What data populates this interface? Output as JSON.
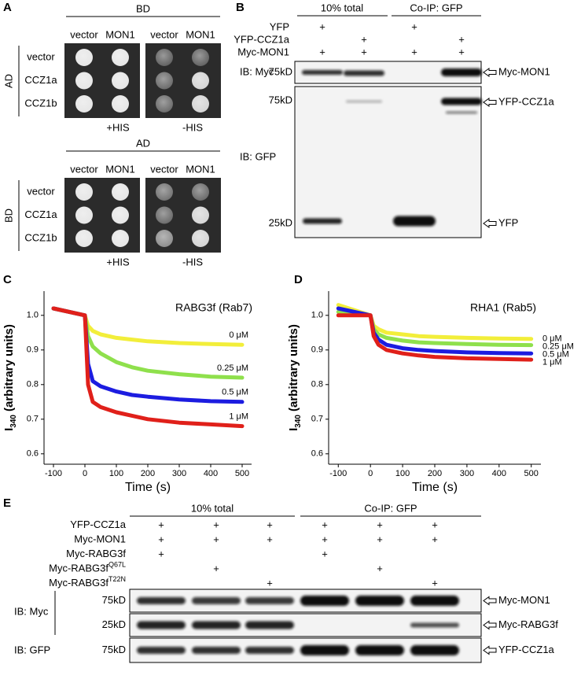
{
  "panel_a": {
    "letter": "A",
    "top": {
      "header": "BD",
      "columns": [
        "vector",
        "MON1",
        "vector",
        "MON1"
      ],
      "side": "AD",
      "rows": [
        "vector",
        "CCZ1a",
        "CCZ1b"
      ],
      "media": [
        "+HIS",
        "-HIS"
      ]
    },
    "bottom": {
      "header": "AD",
      "columns": [
        "vector",
        "MON1",
        "vector",
        "MON1"
      ],
      "side": "BD",
      "rows": [
        "vector",
        "CCZ1a",
        "CCZ1b"
      ],
      "media": [
        "+HIS",
        "-HIS"
      ]
    }
  },
  "panel_b": {
    "letter": "B",
    "groups": [
      "10% total",
      "Co-IP: GFP"
    ],
    "mark": "+",
    "rows": [
      {
        "label": "YFP",
        "present": [
          true,
          false,
          true,
          false
        ]
      },
      {
        "label": "YFP-CCZ1a",
        "present": [
          false,
          true,
          false,
          true
        ]
      },
      {
        "label": "Myc-MON1",
        "present": [
          true,
          true,
          true,
          true
        ]
      }
    ],
    "blots": [
      {
        "probe": "IB: Myc",
        "sizes": [
          "75kD"
        ],
        "targets": [
          "Myc-MON1"
        ]
      },
      {
        "probe": "IB: GFP",
        "sizes": [
          "75kD",
          "25kD"
        ],
        "targets": [
          "YFP-CCZ1a",
          "YFP"
        ]
      }
    ]
  },
  "chart_data": [
    {
      "type": "line",
      "panel": "C",
      "title": "RABG3f (Rab7)",
      "xlabel": "Time (s)",
      "ylabel": {
        "main": "I",
        "sub": "340",
        "rest": "(arbitrary units)"
      },
      "x": [
        -100,
        0,
        10,
        25,
        50,
        100,
        150,
        200,
        300,
        400,
        500
      ],
      "xlim": [
        -130,
        530
      ],
      "xticks": [
        -100,
        0,
        100,
        200,
        300,
        400,
        500
      ],
      "ylim": [
        0.57,
        1.07
      ],
      "yticks": [
        0.6,
        0.7,
        0.8,
        0.9,
        {
          "value": 1,
          "label": "1.0"
        }
      ],
      "series": [
        {
          "name": "0 μM",
          "color": "#f2ee3a",
          "values": [
            1.02,
            1.0,
            0.97,
            0.955,
            0.945,
            0.935,
            0.93,
            0.925,
            0.92,
            0.917,
            0.915
          ]
        },
        {
          "name": "0.25 μM",
          "color": "#8fe04c",
          "values": [
            1.02,
            1.0,
            0.94,
            0.91,
            0.89,
            0.865,
            0.85,
            0.84,
            0.83,
            0.823,
            0.82
          ]
        },
        {
          "name": "0.5 μM",
          "color": "#1c1ce0",
          "values": [
            1.02,
            1.0,
            0.86,
            0.81,
            0.795,
            0.78,
            0.77,
            0.765,
            0.757,
            0.752,
            0.75
          ]
        },
        {
          "name": "1 μM",
          "color": "#e0201a",
          "values": [
            1.02,
            1.0,
            0.8,
            0.75,
            0.735,
            0.72,
            0.71,
            0.7,
            0.69,
            0.685,
            0.68
          ]
        }
      ]
    },
    {
      "type": "line",
      "panel": "D",
      "title": "RHA1 (Rab5)",
      "xlabel": "Time (s)",
      "ylabel": {
        "main": "I",
        "sub": "340",
        "rest": "(arbitrary units)"
      },
      "x": [
        -100,
        0,
        10,
        25,
        50,
        100,
        150,
        200,
        300,
        400,
        500
      ],
      "xlim": [
        -130,
        530
      ],
      "xticks": [
        -100,
        0,
        100,
        200,
        300,
        400,
        500
      ],
      "ylim": [
        0.57,
        1.07
      ],
      "yticks": [
        0.6,
        0.7,
        0.8,
        0.9,
        {
          "value": 1,
          "label": "1.0"
        }
      ],
      "series": [
        {
          "name": "0 μM",
          "color": "#f2ee3a",
          "values": [
            1.03,
            1.0,
            0.97,
            0.96,
            0.95,
            0.945,
            0.94,
            0.938,
            0.935,
            0.933,
            0.932
          ]
        },
        {
          "name": "0.25 μM",
          "color": "#8fe04c",
          "values": [
            1.01,
            1.0,
            0.96,
            0.945,
            0.935,
            0.927,
            0.922,
            0.92,
            0.917,
            0.915,
            0.914
          ]
        },
        {
          "name": "0.5 μM",
          "color": "#1c1ce0",
          "values": [
            1.02,
            1.0,
            0.95,
            0.93,
            0.915,
            0.905,
            0.9,
            0.897,
            0.893,
            0.891,
            0.89
          ]
        },
        {
          "name": "1 μM",
          "color": "#e0201a",
          "values": [
            1.0,
            1.0,
            0.94,
            0.915,
            0.9,
            0.89,
            0.884,
            0.88,
            0.876,
            0.874,
            0.872
          ]
        }
      ]
    }
  ],
  "panel_e": {
    "letter": "E",
    "groups": [
      "10% total",
      "Co-IP: GFP"
    ],
    "mark": "+",
    "rows": [
      {
        "label": "YFP-CCZ1a",
        "present": [
          true,
          true,
          true,
          true,
          true,
          true
        ]
      },
      {
        "label": "Myc-MON1",
        "present": [
          true,
          true,
          true,
          true,
          true,
          true
        ]
      },
      {
        "label": "Myc-RABG3f",
        "present": [
          true,
          false,
          false,
          true,
          false,
          false
        ]
      },
      {
        "label": "Myc-RABG3f",
        "sup": "Q67L",
        "present": [
          false,
          true,
          false,
          false,
          true,
          false
        ]
      },
      {
        "label": "Myc-RABG3f",
        "sup": "T22N",
        "present": [
          false,
          false,
          true,
          false,
          false,
          true
        ]
      }
    ],
    "probes": [
      "IB: Myc",
      "IB: GFP"
    ],
    "blots": [
      {
        "size": "75kD",
        "target": "Myc-MON1"
      },
      {
        "size": "25kD",
        "target": "Myc-RABG3f"
      },
      {
        "size": "75kD",
        "target": "YFP-CCZ1a"
      }
    ]
  }
}
